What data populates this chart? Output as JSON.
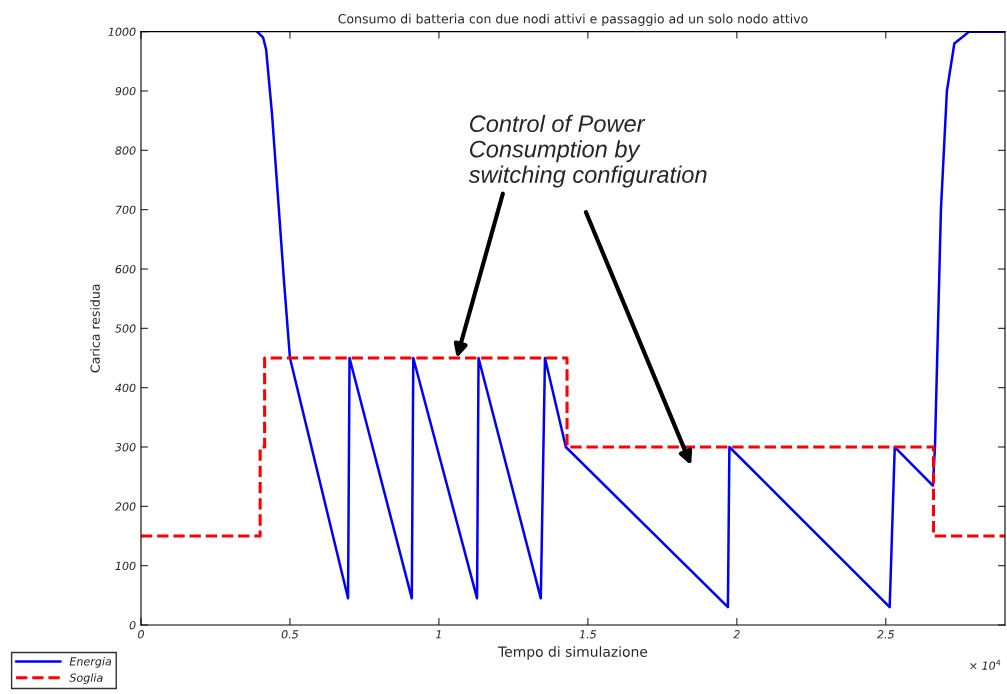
{
  "chart_data": {
    "type": "line",
    "title": "Consumo di batteria con due nodi attivi e passaggio ad un solo nodo attivo",
    "xlabel": "Tempo di simulazione",
    "ylabel": "Carica residua",
    "xlim": [
      0,
      2.9
    ],
    "xticks": [
      0,
      0.5,
      1,
      1.5,
      2,
      2.5
    ],
    "ylim": [
      0,
      1000
    ],
    "yticks": [
      0,
      100,
      200,
      300,
      400,
      500,
      600,
      700,
      800,
      900,
      1000
    ],
    "grid": false,
    "legend": "bottom left",
    "series": [
      {
        "name": "Energia",
        "color": "#0000ff",
        "line_style": "solid",
        "x": [
          0.39,
          0.41,
          0.42,
          0.44,
          0.46,
          0.48,
          0.5,
          0.695,
          0.7,
          0.909,
          0.914,
          1.128,
          1.133,
          1.342,
          1.356,
          1.426,
          1.97,
          1.975,
          2.513,
          2.53,
          2.658,
          2.665,
          2.685,
          2.705,
          2.73,
          2.78,
          2.9
        ],
        "values": [
          1000,
          990,
          970,
          860,
          720,
          580,
          450,
          45,
          450,
          45,
          450,
          45,
          450,
          45,
          450,
          300,
          30,
          300,
          30,
          300,
          235,
          300,
          700,
          900,
          980,
          1000,
          1000
        ]
      },
      {
        "name": "Soglia",
        "color": "#ff0000",
        "line_style": "dashed",
        "x": [
          0,
          0.4,
          0.4,
          0.415,
          0.415,
          1.43,
          1.43,
          2.66,
          2.66,
          2.9
        ],
        "values": [
          150,
          150,
          300,
          300,
          450,
          450,
          300,
          300,
          150,
          150
        ]
      }
    ],
    "annotations": [
      {
        "text": "Control of Power\nConsumption by\nswitching configuration",
        "x": 1.06,
        "y": 450
      },
      "× 10$^{4}$"
    ]
  }
}
